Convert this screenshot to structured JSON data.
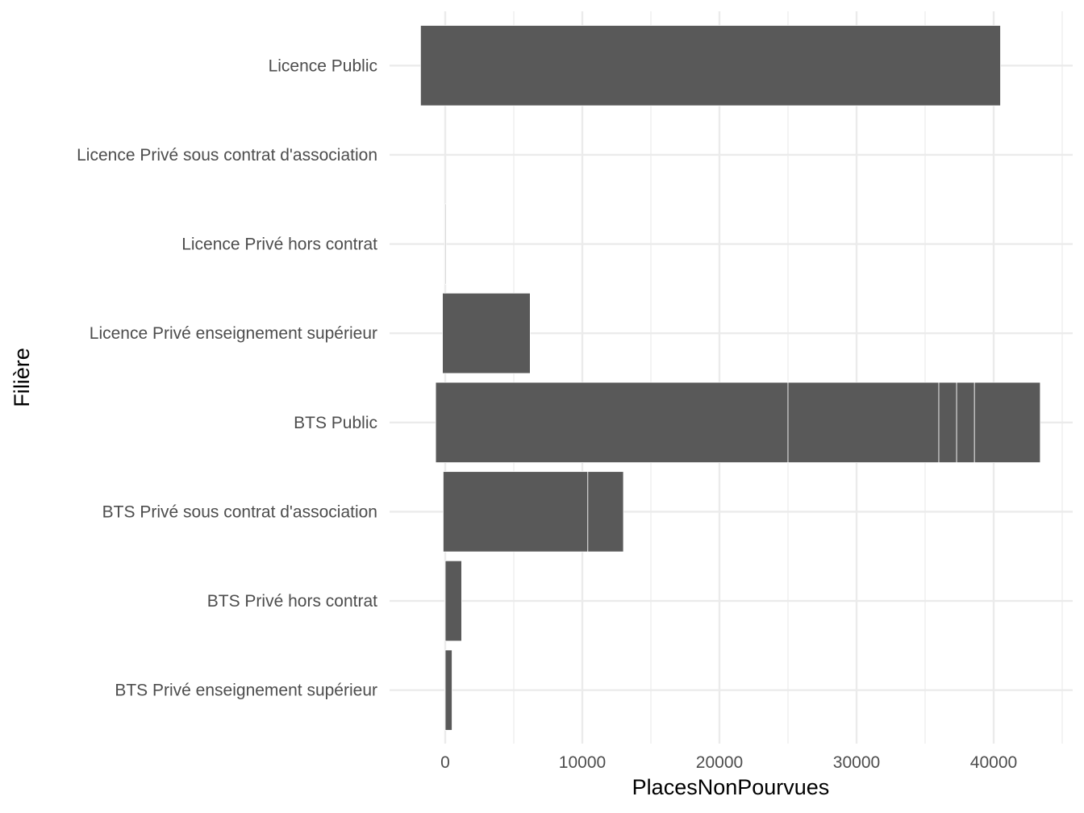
{
  "chart_data": {
    "type": "bar",
    "orientation": "horizontal",
    "stacked": true,
    "xlabel": "PlacesNonPourvues",
    "ylabel": "Filière",
    "xlim": [
      -4000,
      46000
    ],
    "x_ticks": [
      0,
      10000,
      20000,
      30000,
      40000
    ],
    "grid": true,
    "bar_color": "#595959",
    "segment_border_color": "#ffffff",
    "categories": [
      {
        "label": "Licence Public",
        "segments": [
          [
            -1800,
            40500
          ]
        ]
      },
      {
        "label": "Licence Privé sous contrat d'association",
        "segments": []
      },
      {
        "label": "Licence Privé hors contrat",
        "segments": [
          [
            0,
            60
          ]
        ]
      },
      {
        "label": "Licence Privé enseignement supérieur",
        "segments": [
          [
            -200,
            6200
          ]
        ]
      },
      {
        "label": "BTS Public",
        "segments": [
          [
            -700,
            25000
          ],
          [
            25000,
            36000
          ],
          [
            36000,
            37300
          ],
          [
            37300,
            38600
          ],
          [
            38600,
            43400
          ]
        ]
      },
      {
        "label": "BTS Privé sous contrat d'association",
        "segments": [
          [
            -150,
            10400
          ],
          [
            10400,
            13000
          ]
        ]
      },
      {
        "label": "BTS Privé hors contrat",
        "segments": [
          [
            0,
            1200
          ]
        ]
      },
      {
        "label": "BTS Privé enseignement supérieur",
        "segments": [
          [
            0,
            500
          ]
        ]
      }
    ]
  }
}
